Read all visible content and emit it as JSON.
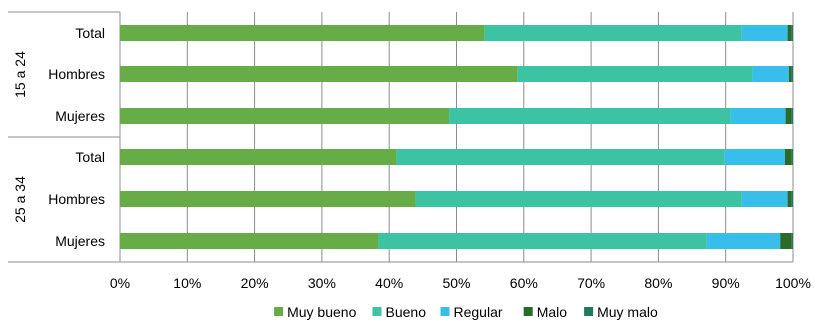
{
  "chart_data": {
    "type": "bar",
    "orientation": "horizontal",
    "stacked": true,
    "x_ticks": [
      "0%",
      "10%",
      "20%",
      "30%",
      "40%",
      "50%",
      "60%",
      "70%",
      "80%",
      "90%",
      "100%"
    ],
    "xlim": [
      0,
      100
    ],
    "grid": true,
    "legend_position": "bottom",
    "groups": [
      {
        "label": "15 a 24",
        "categories": [
          "Total",
          "Hombres",
          "Mujeres"
        ]
      },
      {
        "label": "25 a 34",
        "categories": [
          "Total",
          "Hombres",
          "Mujeres"
        ]
      }
    ],
    "series": [
      {
        "name": "Muy bueno",
        "color": "#66AC47",
        "values": [
          54.2,
          59.1,
          48.9,
          41.1,
          43.9,
          38.4
        ]
      },
      {
        "name": "Bueno",
        "color": "#3CC3A3",
        "values": [
          38.2,
          34.9,
          41.8,
          48.7,
          48.5,
          48.8
        ]
      },
      {
        "name": "Regular",
        "color": "#38BEEA",
        "values": [
          6.8,
          5.4,
          8.2,
          9.0,
          6.8,
          10.9
        ]
      },
      {
        "name": "Malo",
        "color": "#2A6B2C",
        "values": [
          0.6,
          0.4,
          0.9,
          1.0,
          0.6,
          1.7
        ]
      },
      {
        "name": "Muy malo",
        "color": "#1E7B5F",
        "values": [
          0.2,
          0.2,
          0.2,
          0.2,
          0.2,
          0.2
        ]
      }
    ]
  }
}
